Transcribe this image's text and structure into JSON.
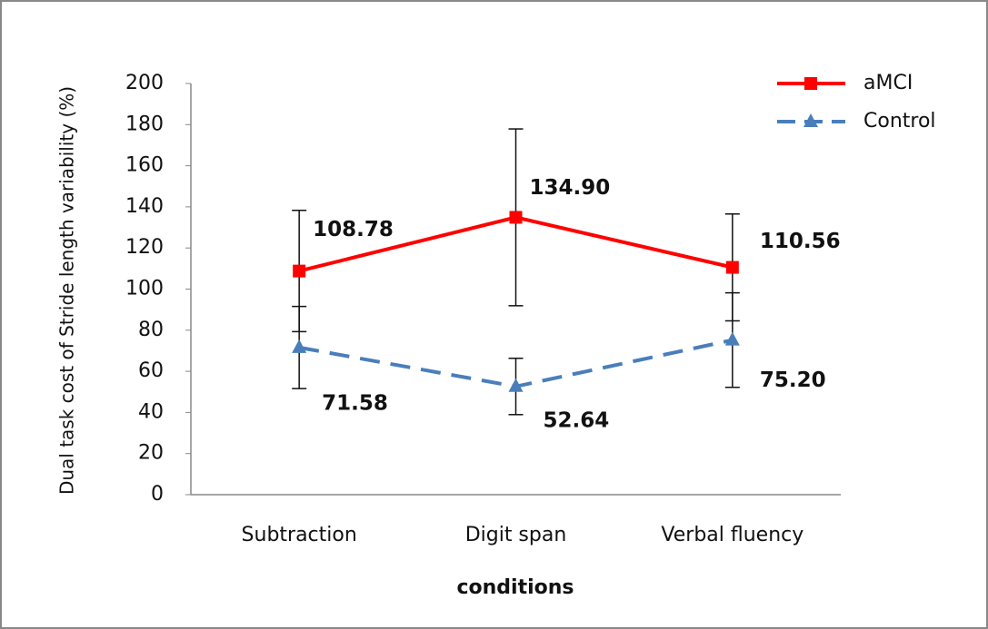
{
  "chart_data": {
    "type": "line",
    "y_label": "Dual task cost of Stride length variability (%)",
    "x_label": "conditions",
    "categories": [
      "Subtraction",
      "Digit span",
      "Verbal fluency"
    ],
    "series": [
      {
        "name": "aMCI",
        "color": "#ff0000",
        "dash": false,
        "marker": "square",
        "values": [
          108.78,
          134.9,
          110.56
        ],
        "value_labels": [
          "108.78",
          "134.90",
          "110.56"
        ],
        "errors": [
          29.5,
          43,
          26
        ]
      },
      {
        "name": "Control",
        "color": "#4a7ebb",
        "dash": true,
        "marker": "triangle",
        "values": [
          71.58,
          52.64,
          75.2
        ],
        "value_labels": [
          "71.58",
          "52.64",
          "75.20"
        ],
        "errors": [
          20,
          13.7,
          23
        ]
      }
    ],
    "ylim": [
      0,
      200
    ],
    "yticks": [
      0,
      20,
      40,
      60,
      80,
      100,
      120,
      140,
      160,
      180,
      200
    ],
    "legend": "top-right"
  }
}
